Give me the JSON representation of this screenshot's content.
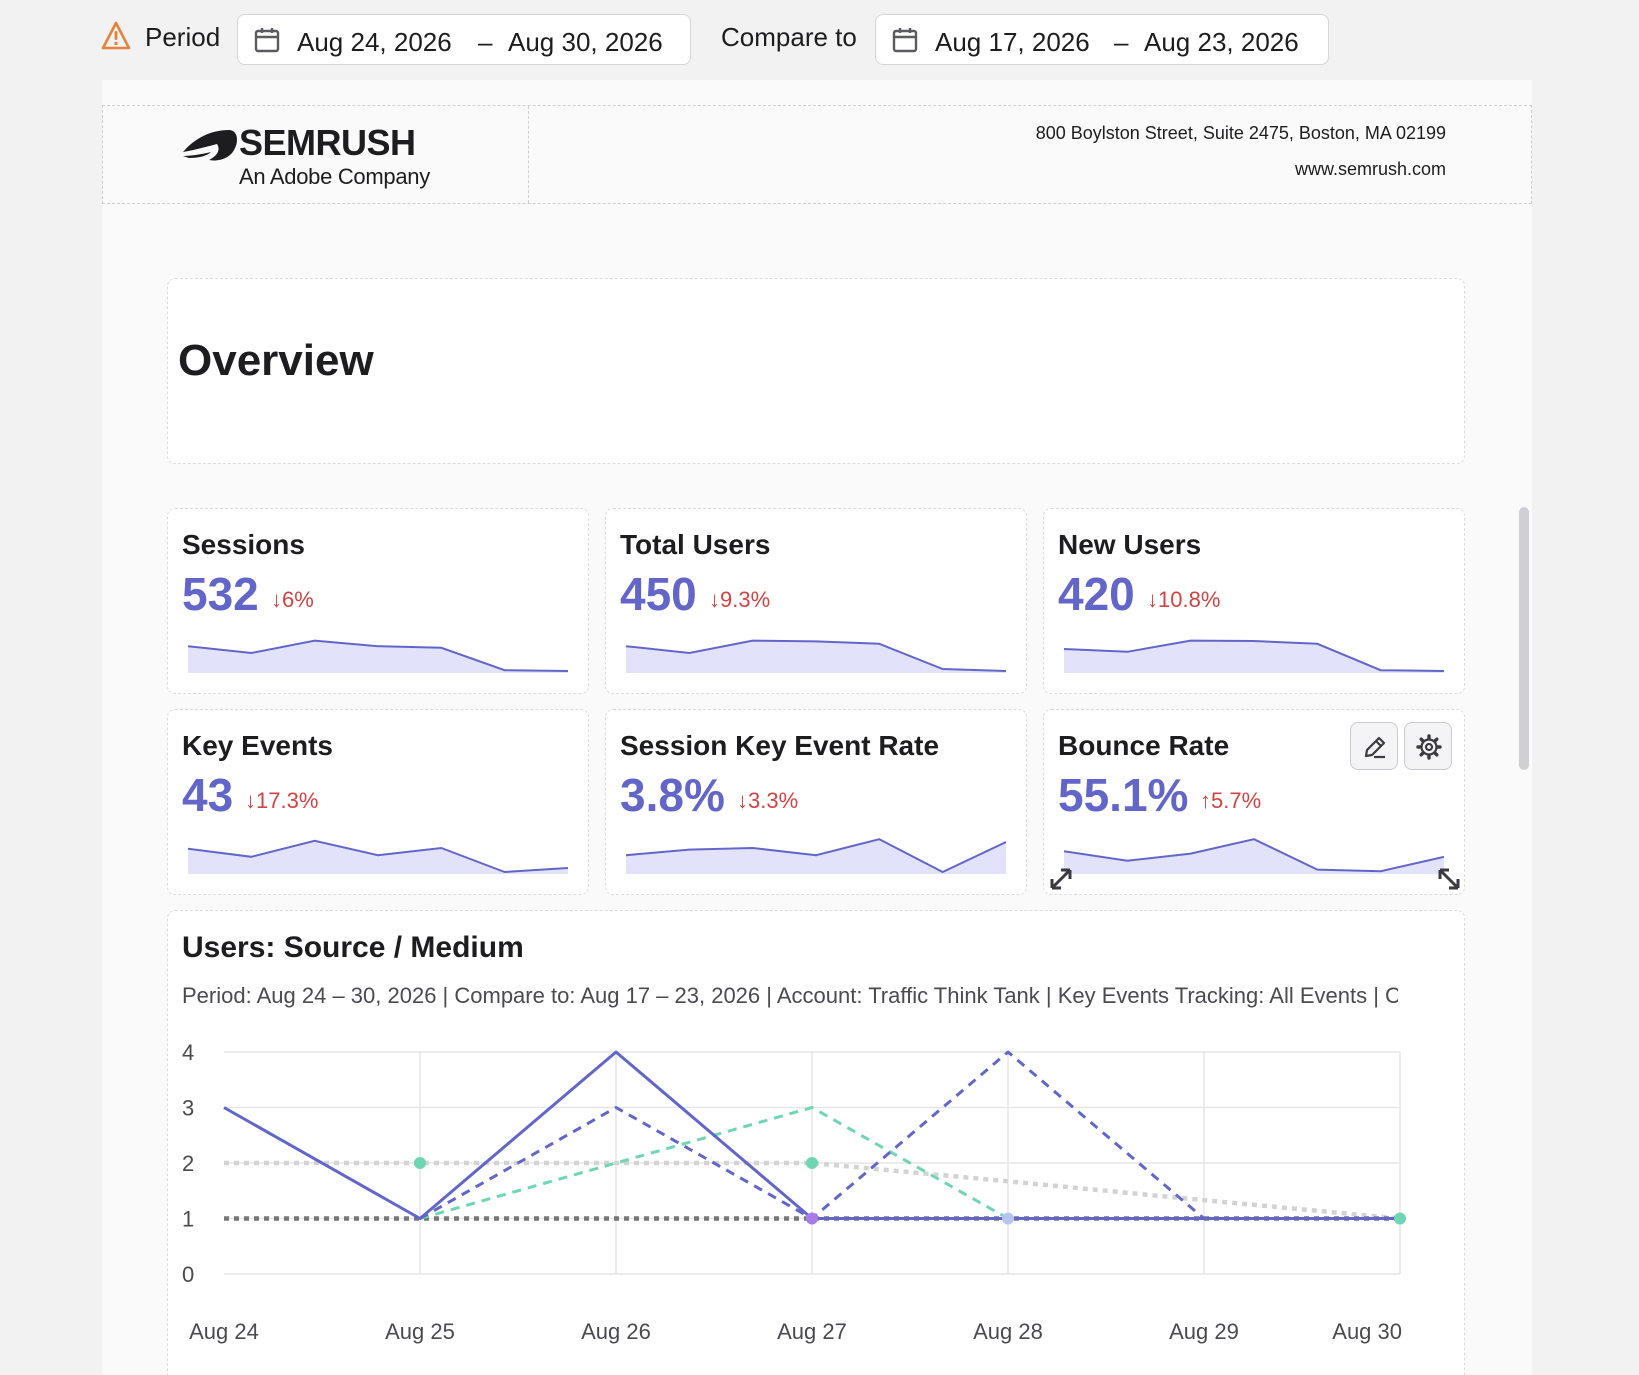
{
  "toolbar": {
    "period_label": "Period",
    "period_start": "Aug 24, 2026",
    "period_end": "Aug 30, 2026",
    "compare_label": "Compare to",
    "compare_start": "Aug 17, 2026",
    "compare_end": "Aug 23, 2026",
    "range_separator": "–"
  },
  "header": {
    "brand": "SEMRUSH",
    "tagline": "An Adobe Company",
    "address": "800 Boylston Street, Suite 2475, Boston, MA 02199",
    "website": "www.semrush.com"
  },
  "overview": {
    "title": "Overview"
  },
  "colors": {
    "accent": "#6366c9",
    "negative": "#d14343",
    "spark_fill": "#e2e2fa",
    "teal": "#6fd6b3",
    "gray": "#d3d3d3",
    "darkgray": "#777777"
  },
  "metrics": [
    {
      "title": "Sessions",
      "value": "532",
      "arrow": "↓",
      "delta": "6%",
      "trend": "down",
      "spark": [
        0.62,
        0.45,
        0.76,
        0.62,
        0.58,
        0.02,
        0.0
      ]
    },
    {
      "title": "Total Users",
      "value": "450",
      "arrow": "↓",
      "delta": "9.3%",
      "trend": "down",
      "spark": [
        0.62,
        0.45,
        0.76,
        0.74,
        0.68,
        0.05,
        0.0
      ]
    },
    {
      "title": "New Users",
      "value": "420",
      "arrow": "↓",
      "delta": "10.8%",
      "trend": "down",
      "spark": [
        0.55,
        0.48,
        0.76,
        0.75,
        0.68,
        0.02,
        0.0
      ]
    },
    {
      "title": "Key Events",
      "value": "43",
      "arrow": "↓",
      "delta": "17.3%",
      "trend": "down",
      "spark": [
        0.58,
        0.38,
        0.78,
        0.42,
        0.6,
        0.0,
        0.1
      ]
    },
    {
      "title": "Session Key Event Rate",
      "value": "3.8%",
      "arrow": "↓",
      "delta": "3.3%",
      "trend": "down",
      "spark": [
        0.42,
        0.56,
        0.6,
        0.42,
        0.82,
        0.0,
        0.75
      ]
    },
    {
      "title": "Bounce Rate",
      "value": "55.1%",
      "arrow": "↑",
      "delta": "5.7%",
      "trend": "up",
      "spark": [
        0.52,
        0.28,
        0.46,
        0.82,
        0.06,
        0.02,
        0.38
      ]
    }
  ],
  "widget_controls": {
    "edit_icon": "pencil-icon",
    "settings_icon": "gear-icon",
    "resize_icon": "resize-arrows-icon"
  },
  "chart": {
    "title": "Users: Source / Medium",
    "subtitle": "Period: Aug 24 – 30, 2026 | Compare to: Aug 17 – 23, 2026 | Account: Traffic Think Tank | Key Events Tracking: All Events | C"
  },
  "chart_data": {
    "type": "line",
    "title": "Users: Source / Medium",
    "categories": [
      "Aug 24",
      "Aug 25",
      "Aug 26",
      "Aug 27",
      "Aug 28",
      "Aug 29",
      "Aug 30"
    ],
    "yticks": [
      "0",
      "1",
      "2",
      "3",
      "4"
    ],
    "ylim": [
      0,
      4
    ],
    "grid": true,
    "series": [
      {
        "values": [
          3,
          1,
          4,
          1,
          1,
          1,
          1
        ],
        "color": "#6366c9",
        "style": "solid"
      },
      {
        "values": [
          null,
          1,
          3,
          1,
          4,
          1,
          1
        ],
        "color": "#6366c9",
        "style": "dashed"
      },
      {
        "values": [
          null,
          1,
          2,
          3,
          1,
          1,
          1
        ],
        "color": "#6fd6b3",
        "style": "dashed"
      },
      {
        "values": [
          2,
          2,
          2,
          2,
          1.67,
          1.33,
          1
        ],
        "color": "#d3d3d3",
        "style": "dotted"
      },
      {
        "values": [
          1,
          1,
          1,
          1,
          1,
          1,
          1
        ],
        "color": "#777777",
        "style": "dotted"
      }
    ]
  }
}
